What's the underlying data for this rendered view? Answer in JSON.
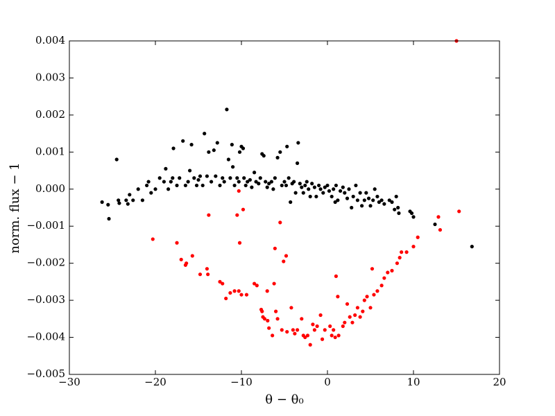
{
  "chart_data": {
    "type": "scatter",
    "xlabel": "θ − θ₀",
    "ylabel": "norm. flux − 1",
    "xlim": [
      -30,
      20
    ],
    "ylim": [
      -0.005,
      0.004
    ],
    "xticks": [
      {
        "value": -30,
        "label": "−30"
      },
      {
        "value": -20,
        "label": "−20"
      },
      {
        "value": -10,
        "label": "−10"
      },
      0,
      10,
      20
    ],
    "yticks": [
      {
        "value": -0.005,
        "label": "−0.005"
      },
      {
        "value": -0.004,
        "label": "−0.004"
      },
      {
        "value": -0.003,
        "label": "−0.003"
      },
      {
        "value": -0.002,
        "label": "−0.002"
      },
      {
        "value": -0.001,
        "label": "−0.001"
      },
      {
        "value": 0,
        "label": "0.000"
      },
      {
        "value": 0.001,
        "label": "0.001"
      },
      {
        "value": 0.002,
        "label": "0.002"
      },
      {
        "value": 0.003,
        "label": "0.003"
      },
      {
        "value": 0.004,
        "label": "0.004"
      }
    ],
    "series": [
      {
        "color": "#000000",
        "x": [
          -26.2,
          -25.5,
          -25.4,
          -24.5,
          -24.3,
          -24.2,
          -23.4,
          -23.2,
          -23,
          -22.6,
          -22,
          -21.5,
          -21,
          -20.8,
          -20.5,
          -20,
          -19.5,
          -19,
          -18.8,
          -18.5,
          -18.2,
          -18,
          -17.9,
          -17.5,
          -17.2,
          -16.8,
          -16.5,
          -16.2,
          -16,
          -15.8,
          -15.5,
          -15.2,
          -15,
          -14.8,
          -14.5,
          -14.3,
          -14,
          -13.8,
          -13.5,
          -13.2,
          -13,
          -12.8,
          -12.5,
          -12.2,
          -12,
          -11.7,
          -11.5,
          -11.3,
          -11.1,
          -11,
          -10.8,
          -10.5,
          -10.3,
          -10.2,
          -10,
          -9.8,
          -9.7,
          -9.5,
          -9.3,
          -9,
          -8.8,
          -8.5,
          -8.3,
          -8,
          -7.8,
          -7.6,
          -7.4,
          -7.2,
          -7,
          -6.8,
          -6.5,
          -6.3,
          -6.1,
          -5.8,
          -5.5,
          -5.3,
          -5,
          -4.8,
          -4.7,
          -4.5,
          -4.3,
          -4.1,
          -3.9,
          -3.7,
          -3.5,
          -3.4,
          -3.2,
          -3,
          -2.8,
          -2.6,
          -2.4,
          -2.2,
          -2,
          -1.8,
          -1.5,
          -1.3,
          -1,
          -0.8,
          -0.5,
          -0.3,
          0,
          0.2,
          0.5,
          0.7,
          0.9,
          1,
          1.2,
          1.5,
          1.8,
          2,
          2.3,
          2.5,
          2.8,
          3,
          3.3,
          3.5,
          3.8,
          4,
          4.3,
          4.5,
          4.8,
          5,
          5.3,
          5.5,
          5.8,
          6,
          6.3,
          6.6,
          7.2,
          7.5,
          7.8,
          8,
          8.2,
          8.3,
          9.6,
          9.8,
          10,
          12.5,
          16.8
        ],
        "values": [
          -0.00035,
          -0.00042,
          -0.0008,
          0.0008,
          -0.0003,
          -0.00038,
          -0.0003,
          -0.0004,
          -0.00015,
          -0.0003,
          0,
          -0.0003,
          0.0001,
          0.0002,
          -0.0001,
          0,
          0.0003,
          0.0002,
          0.00055,
          0,
          0.0002,
          0.0003,
          0.0011,
          0.0001,
          0.0003,
          0.0013,
          0.0001,
          0.0002,
          0.0005,
          0.0012,
          0.0003,
          0.0001,
          0.00025,
          0.00035,
          0.0001,
          0.0015,
          0.00035,
          0.001,
          0.0002,
          0.00105,
          0.00035,
          0.00125,
          0.0001,
          0.0003,
          0.0002,
          0.00215,
          0.0008,
          0.0003,
          0.0012,
          0.0006,
          0.0001,
          0.0003,
          0.0002,
          0.001,
          0.00115,
          0.0011,
          0.0003,
          0.0001,
          0.0002,
          0.00025,
          5e-05,
          0.00045,
          0.0002,
          0.00015,
          0.0003,
          0.00095,
          0.0009,
          0.0002,
          5e-05,
          0.00015,
          0.0002,
          0,
          0.0003,
          0.00085,
          0.001,
          0.0001,
          0.0002,
          0.0001,
          0.00115,
          0.0003,
          -0.00035,
          0.00015,
          0.0002,
          -0.0001,
          0.0007,
          0.00125,
          0.00015,
          5e-05,
          -0.0001,
          0.0001,
          0.0002,
          0,
          -0.0002,
          0.00015,
          5e-05,
          -0.0002,
          0.0001,
          0,
          -0.0001,
          5e-05,
          0.0001,
          -5e-05,
          -0.0002,
          0,
          -0.00035,
          0.0001,
          -0.0003,
          -5e-05,
          5e-05,
          -0.0001,
          -0.00025,
          0,
          -0.0005,
          -0.0002,
          0.0001,
          -0.0003,
          -0.0001,
          -0.00045,
          -0.0003,
          -0.0001,
          -0.00025,
          -0.00045,
          -0.0003,
          0,
          -0.0002,
          -0.00035,
          -0.0003,
          -0.0004,
          -0.0003,
          -0.00035,
          -0.00055,
          -0.0002,
          -0.0005,
          -0.00065,
          -0.0006,
          -0.00065,
          -0.00075,
          -0.00095,
          -0.00155
        ]
      },
      {
        "color": "#ff0000",
        "x": [
          -20.3,
          -17.5,
          -17,
          -16.5,
          -16.4,
          -15.7,
          -14.8,
          -14,
          -13.9,
          -13.8,
          -12.5,
          -12.2,
          -11.8,
          -11.3,
          -10.8,
          -10.5,
          -10.3,
          -10.2,
          -10,
          -9.4,
          -9.8,
          -8.5,
          -8.2,
          -7.7,
          -7.6,
          -7.5,
          -7.3,
          -7,
          -6.95,
          -6.8,
          -6.4,
          -6.2,
          -6.1,
          -6,
          -5.8,
          -5.5,
          -5.3,
          -5.1,
          -4.8,
          -4.7,
          -4.2,
          -4,
          -3.8,
          -3.5,
          -3,
          -2.8,
          -2.6,
          -2.3,
          -2,
          -1.7,
          -1.5,
          -1.2,
          -0.8,
          -0.6,
          -0.3,
          0.3,
          0.5,
          0.7,
          0.9,
          1,
          1.2,
          1.3,
          1.8,
          2,
          2.3,
          2.6,
          2.9,
          3.2,
          3.5,
          3.8,
          4.1,
          4.3,
          4.6,
          5,
          5.2,
          5.4,
          5.8,
          6.3,
          6.6,
          7,
          7.5,
          8.1,
          8.4,
          8.6,
          9.2,
          10,
          10.5,
          12.9,
          13.1,
          15,
          15.3,
          -10.3
        ],
        "values": [
          -0.00135,
          -0.00145,
          -0.0019,
          -0.00205,
          -0.002,
          -0.0018,
          -0.0023,
          -0.00215,
          -0.0023,
          -0.0007,
          -0.0025,
          -0.00255,
          -0.00295,
          -0.0028,
          -0.00275,
          -0.0007,
          -0.00275,
          -0.00145,
          -0.00285,
          -0.00285,
          -0.00055,
          -0.00255,
          -0.0026,
          -0.00325,
          -0.0033,
          -0.00345,
          -0.0035,
          -0.00275,
          -0.00355,
          -0.00375,
          -0.00395,
          -0.00255,
          -0.0016,
          -0.0033,
          -0.0035,
          -0.0009,
          -0.0038,
          -0.00195,
          -0.0018,
          -0.00385,
          -0.0032,
          -0.0038,
          -0.0039,
          -0.0038,
          -0.0035,
          -0.00395,
          -0.004,
          -0.00395,
          -0.0042,
          -0.00365,
          -0.0038,
          -0.0037,
          -0.0034,
          -0.00405,
          -0.0038,
          -0.0037,
          -0.00395,
          -0.0038,
          -0.004,
          -0.00235,
          -0.0029,
          -0.00395,
          -0.0037,
          -0.0036,
          -0.0031,
          -0.00345,
          -0.0036,
          -0.0034,
          -0.0032,
          -0.00345,
          -0.0033,
          -0.003,
          -0.0029,
          -0.0032,
          -0.00215,
          -0.00285,
          -0.00275,
          -0.0026,
          -0.0024,
          -0.00225,
          -0.0022,
          -0.002,
          -0.00185,
          -0.0017,
          -0.0017,
          -0.00155,
          -0.0013,
          -0.00075,
          -0.0011,
          0.004,
          -0.0006,
          -5e-05
        ]
      }
    ]
  }
}
